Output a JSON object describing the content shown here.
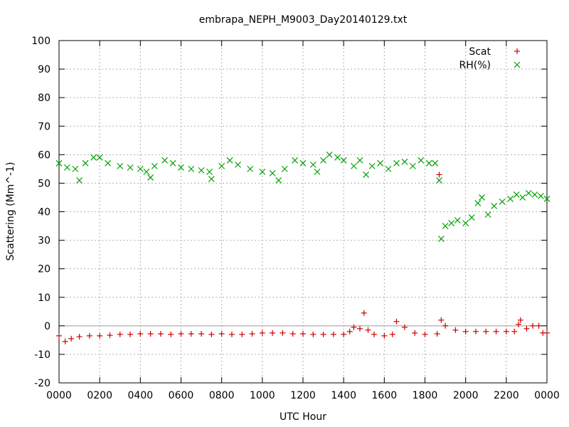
{
  "chart_data": {
    "type": "scatter",
    "title": "embrapa_NEPH_M9003_Day20140129.txt",
    "xlabel": "UTC Hour",
    "ylabel": "Scattering (Mm^-1)",
    "xlim": [
      0,
      2400
    ],
    "ylim": [
      -20,
      100
    ],
    "x_ticks": [
      "0000",
      "0200",
      "0400",
      "0600",
      "0800",
      "1000",
      "1200",
      "1400",
      "1600",
      "1800",
      "2000",
      "2200",
      "0000"
    ],
    "y_ticks": [
      -20,
      -10,
      0,
      10,
      20,
      30,
      40,
      50,
      60,
      70,
      80,
      90,
      100
    ],
    "grid": true,
    "legend_position": "top-right",
    "colors": {
      "Scat": "#cc0000",
      "RH(%)": "#00a000",
      "zero_line": "#a0a0a0"
    },
    "series": [
      {
        "name": "Scat",
        "marker": "plus",
        "points": [
          [
            0,
            -3.5
          ],
          [
            30,
            -5.5
          ],
          [
            60,
            -4.5
          ],
          [
            100,
            -3.8
          ],
          [
            150,
            -3.5
          ],
          [
            200,
            -3.5
          ],
          [
            250,
            -3.3
          ],
          [
            300,
            -3.0
          ],
          [
            350,
            -3.0
          ],
          [
            400,
            -2.8
          ],
          [
            450,
            -2.8
          ],
          [
            500,
            -2.8
          ],
          [
            550,
            -3.0
          ],
          [
            600,
            -2.8
          ],
          [
            650,
            -2.8
          ],
          [
            700,
            -2.8
          ],
          [
            750,
            -3.0
          ],
          [
            800,
            -2.8
          ],
          [
            850,
            -3.0
          ],
          [
            900,
            -3.0
          ],
          [
            950,
            -2.8
          ],
          [
            1000,
            -2.5
          ],
          [
            1050,
            -2.5
          ],
          [
            1100,
            -2.5
          ],
          [
            1150,
            -2.8
          ],
          [
            1200,
            -2.8
          ],
          [
            1250,
            -3.0
          ],
          [
            1300,
            -3.0
          ],
          [
            1350,
            -3.0
          ],
          [
            1400,
            -3.0
          ],
          [
            1430,
            -2.0
          ],
          [
            1450,
            -0.5
          ],
          [
            1480,
            -1.0
          ],
          [
            1500,
            4.5
          ],
          [
            1520,
            -1.5
          ],
          [
            1550,
            -3.0
          ],
          [
            1600,
            -3.5
          ],
          [
            1640,
            -3.0
          ],
          [
            1660,
            1.5
          ],
          [
            1700,
            -0.5
          ],
          [
            1750,
            -2.5
          ],
          [
            1800,
            -3.0
          ],
          [
            1860,
            -2.8
          ],
          [
            1870,
            53
          ],
          [
            1880,
            2.0
          ],
          [
            1900,
            0.0
          ],
          [
            1950,
            -1.5
          ],
          [
            2000,
            -2.0
          ],
          [
            2050,
            -2.0
          ],
          [
            2100,
            -2.0
          ],
          [
            2150,
            -2.0
          ],
          [
            2200,
            -2.0
          ],
          [
            2240,
            -2.0
          ],
          [
            2260,
            0.5
          ],
          [
            2270,
            2.0
          ],
          [
            2300,
            -1.0
          ],
          [
            2330,
            0.0
          ],
          [
            2360,
            0.0
          ],
          [
            2380,
            -2.5
          ],
          [
            2400,
            -2.5
          ]
        ]
      },
      {
        "name": "RH(%)",
        "marker": "cross",
        "points": [
          [
            0,
            57
          ],
          [
            40,
            55.5
          ],
          [
            80,
            55
          ],
          [
            100,
            51
          ],
          [
            130,
            57
          ],
          [
            170,
            59
          ],
          [
            200,
            59
          ],
          [
            240,
            57
          ],
          [
            300,
            56
          ],
          [
            350,
            55.5
          ],
          [
            400,
            55
          ],
          [
            430,
            54
          ],
          [
            450,
            52
          ],
          [
            470,
            56
          ],
          [
            520,
            58
          ],
          [
            560,
            57
          ],
          [
            600,
            55.5
          ],
          [
            650,
            55
          ],
          [
            700,
            54.5
          ],
          [
            740,
            54
          ],
          [
            750,
            51.5
          ],
          [
            800,
            56
          ],
          [
            840,
            58
          ],
          [
            880,
            56.5
          ],
          [
            940,
            55
          ],
          [
            1000,
            54
          ],
          [
            1050,
            53.5
          ],
          [
            1080,
            51
          ],
          [
            1110,
            55
          ],
          [
            1160,
            58
          ],
          [
            1200,
            57
          ],
          [
            1250,
            56.5
          ],
          [
            1270,
            54
          ],
          [
            1300,
            58
          ],
          [
            1330,
            60
          ],
          [
            1370,
            59
          ],
          [
            1400,
            58
          ],
          [
            1450,
            56
          ],
          [
            1480,
            58
          ],
          [
            1510,
            53
          ],
          [
            1540,
            56
          ],
          [
            1580,
            57
          ],
          [
            1620,
            55
          ],
          [
            1660,
            57
          ],
          [
            1700,
            57.5
          ],
          [
            1740,
            56
          ],
          [
            1780,
            58
          ],
          [
            1820,
            57
          ],
          [
            1850,
            57
          ],
          [
            1870,
            51
          ],
          [
            1880,
            30.5
          ],
          [
            1900,
            35
          ],
          [
            1930,
            36
          ],
          [
            1960,
            37
          ],
          [
            2000,
            36
          ],
          [
            2030,
            38
          ],
          [
            2060,
            43
          ],
          [
            2080,
            45
          ],
          [
            2110,
            39
          ],
          [
            2140,
            42
          ],
          [
            2180,
            43.5
          ],
          [
            2220,
            44.5
          ],
          [
            2250,
            46
          ],
          [
            2280,
            45
          ],
          [
            2310,
            46.5
          ],
          [
            2340,
            46
          ],
          [
            2370,
            45.5
          ],
          [
            2400,
            44.5
          ]
        ]
      }
    ]
  }
}
